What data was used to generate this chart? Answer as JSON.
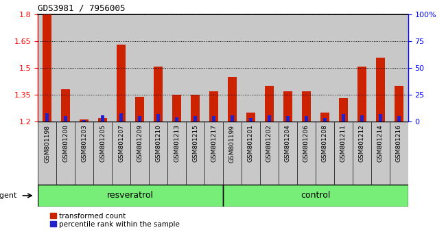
{
  "title": "GDS3981 / 7956005",
  "samples": [
    "GSM801198",
    "GSM801200",
    "GSM801203",
    "GSM801205",
    "GSM801207",
    "GSM801209",
    "GSM801210",
    "GSM801213",
    "GSM801215",
    "GSM801217",
    "GSM801199",
    "GSM801201",
    "GSM801202",
    "GSM801204",
    "GSM801206",
    "GSM801208",
    "GSM801211",
    "GSM801212",
    "GSM801214",
    "GSM801216"
  ],
  "transformed_count": [
    1.8,
    1.38,
    1.21,
    1.22,
    1.63,
    1.34,
    1.51,
    1.35,
    1.35,
    1.37,
    1.45,
    1.25,
    1.4,
    1.37,
    1.37,
    1.25,
    1.33,
    1.51,
    1.56,
    1.4
  ],
  "percentile_rank": [
    8,
    5,
    1,
    6,
    8,
    5,
    7,
    4,
    5,
    5,
    6,
    3,
    6,
    5,
    5,
    3,
    7,
    6,
    7,
    5
  ],
  "ylim_left": [
    1.2,
    1.8
  ],
  "ylim_right": [
    0,
    100
  ],
  "yticks_left": [
    1.2,
    1.35,
    1.5,
    1.65,
    1.8
  ],
  "yticks_right": [
    0,
    25,
    50,
    75,
    100
  ],
  "ytick_labels_right": [
    "0",
    "25",
    "50",
    "75",
    "100%"
  ],
  "resveratrol_count": 10,
  "control_count": 10,
  "bar_color_red": "#cc2200",
  "bar_color_blue": "#2222cc",
  "resveratrol_label": "resveratrol",
  "control_label": "control",
  "agent_label": "agent",
  "legend_red": "transformed count",
  "legend_blue": "percentile rank within the sample",
  "background_bar": "#c8c8c8",
  "background_group": "#77ee77",
  "bar_width": 0.5,
  "blue_bar_width": 0.18
}
